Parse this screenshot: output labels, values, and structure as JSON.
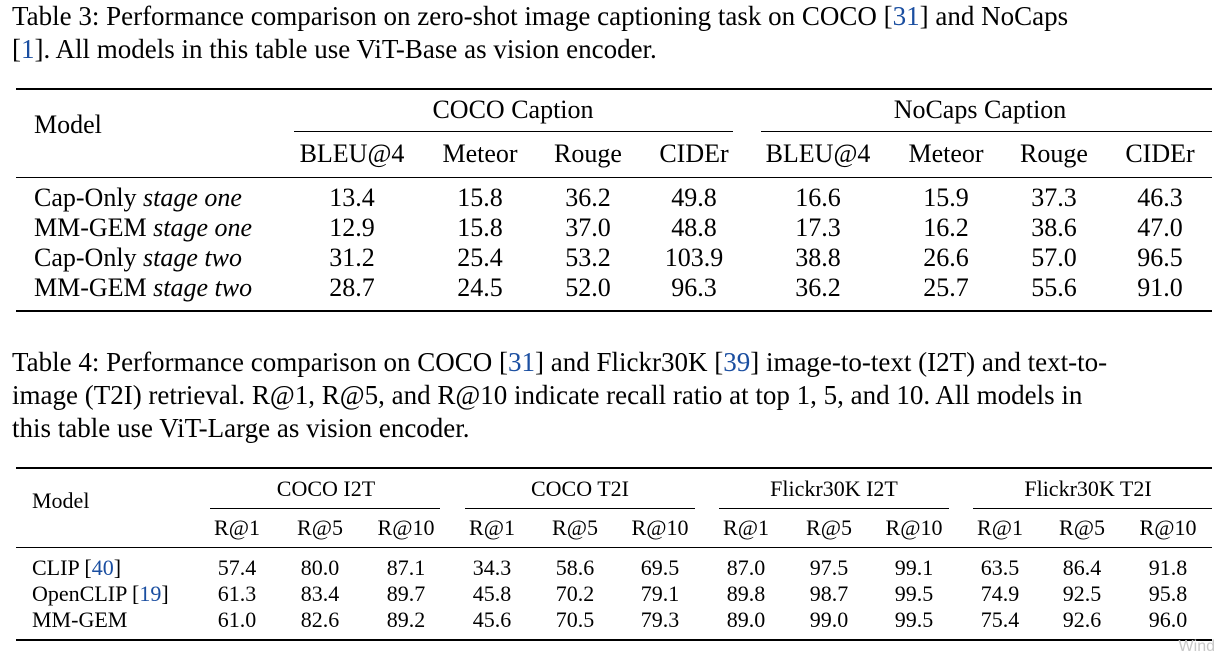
{
  "table3": {
    "caption_prefix": "Table 3: Performance comparison on zero-shot image captioning task on COCO [",
    "caption_ref1": "31",
    "caption_mid": "] and NoCaps",
    "caption_line2_prefix": "[",
    "caption_ref2": "1",
    "caption_line2_rest": "]. All models in this table use ViT-Base as vision encoder.",
    "model_header": "Model",
    "groups": [
      "COCO Caption",
      "NoCaps Caption"
    ],
    "metrics": [
      "BLEU@4",
      "Meteor",
      "Rouge",
      "CIDEr",
      "BLEU@4",
      "Meteor",
      "Rouge",
      "CIDEr"
    ],
    "rows": [
      {
        "model": "Cap-Only",
        "stage": "stage one",
        "values": [
          "13.4",
          "15.8",
          "36.2",
          "49.8",
          "16.6",
          "15.9",
          "37.3",
          "46.3"
        ]
      },
      {
        "model": "MM-GEM",
        "stage": "stage one",
        "values": [
          "12.9",
          "15.8",
          "37.0",
          "48.8",
          "17.3",
          "16.2",
          "38.6",
          "47.0"
        ]
      },
      {
        "model": "Cap-Only",
        "stage": "stage two",
        "values": [
          "31.2",
          "25.4",
          "53.2",
          "103.9",
          "38.8",
          "26.6",
          "57.0",
          "96.5"
        ]
      },
      {
        "model": "MM-GEM",
        "stage": "stage two",
        "values": [
          "28.7",
          "24.5",
          "52.0",
          "96.3",
          "36.2",
          "25.7",
          "55.6",
          "91.0"
        ]
      }
    ]
  },
  "table4": {
    "caption_l1_a": "Table 4: Performance comparison on COCO [",
    "caption_ref1": "31",
    "caption_l1_b": "] and Flickr30K [",
    "caption_ref2": "39",
    "caption_l1_c": "] image-to-text (I2T) and text-to-",
    "caption_l2": "image (T2I) retrieval. R@1, R@5, and R@10 indicate recall ratio at top 1, 5, and 10. All models in",
    "caption_l3": "this table use ViT-Large as vision encoder.",
    "model_header": "Model",
    "groups": [
      "COCO I2T",
      "COCO T2I",
      "Flickr30K I2T",
      "Flickr30K T2I"
    ],
    "metrics": [
      "R@1",
      "R@5",
      "R@10",
      "R@1",
      "R@5",
      "R@10",
      "R@1",
      "R@5",
      "R@10",
      "R@1",
      "R@5",
      "R@10"
    ],
    "rows": [
      {
        "model": "CLIP [",
        "ref": "40",
        "model_end": "]",
        "values": [
          "57.4",
          "80.0",
          "87.1",
          "34.3",
          "58.6",
          "69.5",
          "87.0",
          "97.5",
          "99.1",
          "63.5",
          "86.4",
          "91.8"
        ]
      },
      {
        "model": "OpenCLIP [",
        "ref": "19",
        "model_end": "]",
        "values": [
          "61.3",
          "83.4",
          "89.7",
          "45.8",
          "70.2",
          "79.1",
          "89.8",
          "98.7",
          "99.5",
          "74.9",
          "92.5",
          "95.8"
        ]
      },
      {
        "model": "MM-GEM",
        "ref": "",
        "model_end": "",
        "values": [
          "61.0",
          "82.6",
          "89.2",
          "45.6",
          "70.5",
          "79.3",
          "89.0",
          "99.0",
          "99.5",
          "75.4",
          "92.6",
          "96.0"
        ]
      }
    ]
  },
  "watermark": "Wind"
}
